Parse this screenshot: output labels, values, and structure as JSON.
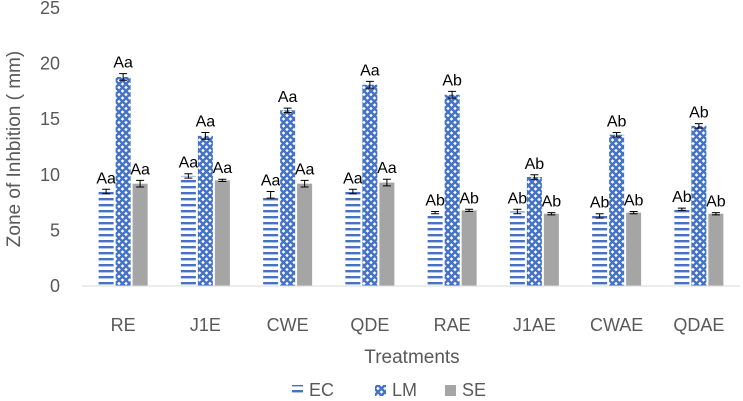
{
  "chart_data": {
    "type": "bar",
    "title": "",
    "xlabel": "Treatments",
    "ylabel": "Zone of Inhbition  ( mm)",
    "ylim": [
      0,
      25
    ],
    "yticks": [
      0,
      5,
      10,
      15,
      20,
      25
    ],
    "grid": false,
    "legend_position": "bottom",
    "categories": [
      "RE",
      "J1E",
      "CWE",
      "QDE",
      "RAE",
      "J1AE",
      "CWAE",
      "QDAE"
    ],
    "series": [
      {
        "name": "EC",
        "pattern": "horizontal-lines",
        "color": "#4472C4",
        "values": [
          8.5,
          9.9,
          8.2,
          8.5,
          6.6,
          6.7,
          6.3,
          6.9
        ],
        "errors": [
          0.2,
          0.2,
          0.3,
          0.2,
          0.1,
          0.2,
          0.2,
          0.1
        ],
        "labels": [
          "Aa",
          "Aa",
          "Aa",
          "Aa",
          "Ab",
          "Ab",
          "Ab",
          "Ab"
        ]
      },
      {
        "name": "LM",
        "pattern": "crosshatch",
        "color": "#4472C4",
        "values": [
          18.8,
          13.5,
          15.8,
          18.1,
          17.2,
          9.8,
          13.6,
          14.4
        ],
        "errors": [
          0.3,
          0.3,
          0.2,
          0.3,
          0.3,
          0.2,
          0.2,
          0.2
        ],
        "labels": [
          "Aa",
          "Aa",
          "Aa",
          "Aa",
          "Ab",
          "Ab",
          "Ab",
          "Ab"
        ]
      },
      {
        "name": "SE",
        "pattern": "solid",
        "color": "#A5A5A5",
        "values": [
          9.2,
          9.5,
          9.2,
          9.3,
          6.8,
          6.5,
          6.6,
          6.5
        ],
        "errors": [
          0.3,
          0.1,
          0.3,
          0.3,
          0.1,
          0.1,
          0.1,
          0.1
        ],
        "labels": [
          "Aa",
          "Aa",
          "Aa",
          "Aa",
          "Ab",
          "Ab",
          "Ab",
          "Ab"
        ]
      }
    ]
  }
}
